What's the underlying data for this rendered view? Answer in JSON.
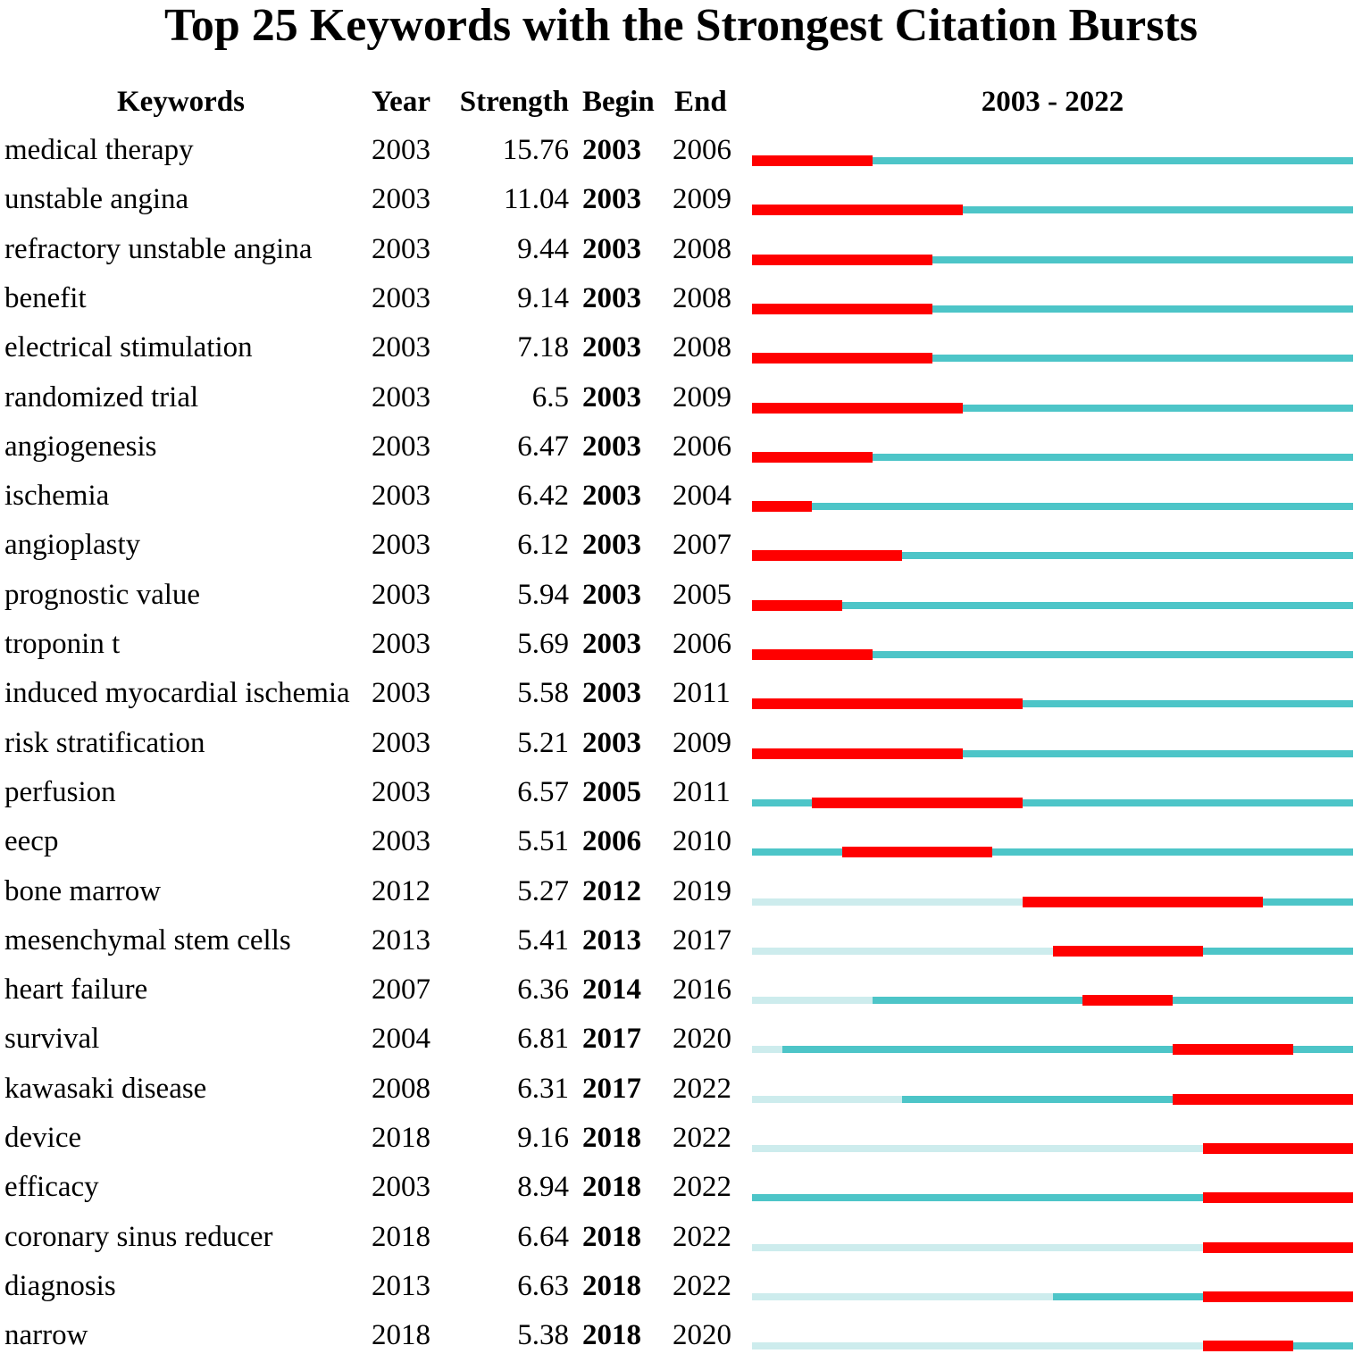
{
  "chart_data": {
    "type": "table",
    "title": "Top 25 Keywords with the Strongest Citation Bursts",
    "columns": [
      "Keywords",
      "Year",
      "Strength",
      "Begin",
      "End"
    ],
    "range_label": "2003 - 2022",
    "range": [
      2003,
      2022
    ],
    "colors": {
      "burst": "#ff0000",
      "active": "#4dc5c8",
      "inactive": "#cdeced"
    },
    "rows": [
      {
        "keyword": "medical therapy",
        "year": "2003",
        "strength": "15.76",
        "begin": "2003",
        "end": "2006"
      },
      {
        "keyword": "unstable angina",
        "year": "2003",
        "strength": "11.04",
        "begin": "2003",
        "end": "2009"
      },
      {
        "keyword": "refractory unstable angina",
        "year": "2003",
        "strength": "9.44",
        "begin": "2003",
        "end": "2008"
      },
      {
        "keyword": "benefit",
        "year": "2003",
        "strength": "9.14",
        "begin": "2003",
        "end": "2008"
      },
      {
        "keyword": "electrical stimulation",
        "year": "2003",
        "strength": "7.18",
        "begin": "2003",
        "end": "2008"
      },
      {
        "keyword": "randomized trial",
        "year": "2003",
        "strength": "6.5",
        "begin": "2003",
        "end": "2009"
      },
      {
        "keyword": "angiogenesis",
        "year": "2003",
        "strength": "6.47",
        "begin": "2003",
        "end": "2006"
      },
      {
        "keyword": "ischemia",
        "year": "2003",
        "strength": "6.42",
        "begin": "2003",
        "end": "2004"
      },
      {
        "keyword": "angioplasty",
        "year": "2003",
        "strength": "6.12",
        "begin": "2003",
        "end": "2007"
      },
      {
        "keyword": "prognostic value",
        "year": "2003",
        "strength": "5.94",
        "begin": "2003",
        "end": "2005"
      },
      {
        "keyword": "troponin t",
        "year": "2003",
        "strength": "5.69",
        "begin": "2003",
        "end": "2006"
      },
      {
        "keyword": "induced myocardial ischemia",
        "year": "2003",
        "strength": "5.58",
        "begin": "2003",
        "end": "2011"
      },
      {
        "keyword": "risk stratification",
        "year": "2003",
        "strength": "5.21",
        "begin": "2003",
        "end": "2009"
      },
      {
        "keyword": "perfusion",
        "year": "2003",
        "strength": "6.57",
        "begin": "2005",
        "end": "2011"
      },
      {
        "keyword": "eecp",
        "year": "2003",
        "strength": "5.51",
        "begin": "2006",
        "end": "2010"
      },
      {
        "keyword": "bone marrow",
        "year": "2012",
        "strength": "5.27",
        "begin": "2012",
        "end": "2019"
      },
      {
        "keyword": "mesenchymal stem cells",
        "year": "2013",
        "strength": "5.41",
        "begin": "2013",
        "end": "2017"
      },
      {
        "keyword": "heart failure",
        "year": "2007",
        "strength": "6.36",
        "begin": "2014",
        "end": "2016"
      },
      {
        "keyword": "survival",
        "year": "2004",
        "strength": "6.81",
        "begin": "2017",
        "end": "2020"
      },
      {
        "keyword": "kawasaki disease",
        "year": "2008",
        "strength": "6.31",
        "begin": "2017",
        "end": "2022"
      },
      {
        "keyword": "device",
        "year": "2018",
        "strength": "9.16",
        "begin": "2018",
        "end": "2022"
      },
      {
        "keyword": "efficacy",
        "year": "2003",
        "strength": "8.94",
        "begin": "2018",
        "end": "2022"
      },
      {
        "keyword": "coronary sinus reducer",
        "year": "2018",
        "strength": "6.64",
        "begin": "2018",
        "end": "2022"
      },
      {
        "keyword": "diagnosis",
        "year": "2013",
        "strength": "6.63",
        "begin": "2018",
        "end": "2022"
      },
      {
        "keyword": "narrow",
        "year": "2018",
        "strength": "5.38",
        "begin": "2018",
        "end": "2020"
      }
    ]
  }
}
